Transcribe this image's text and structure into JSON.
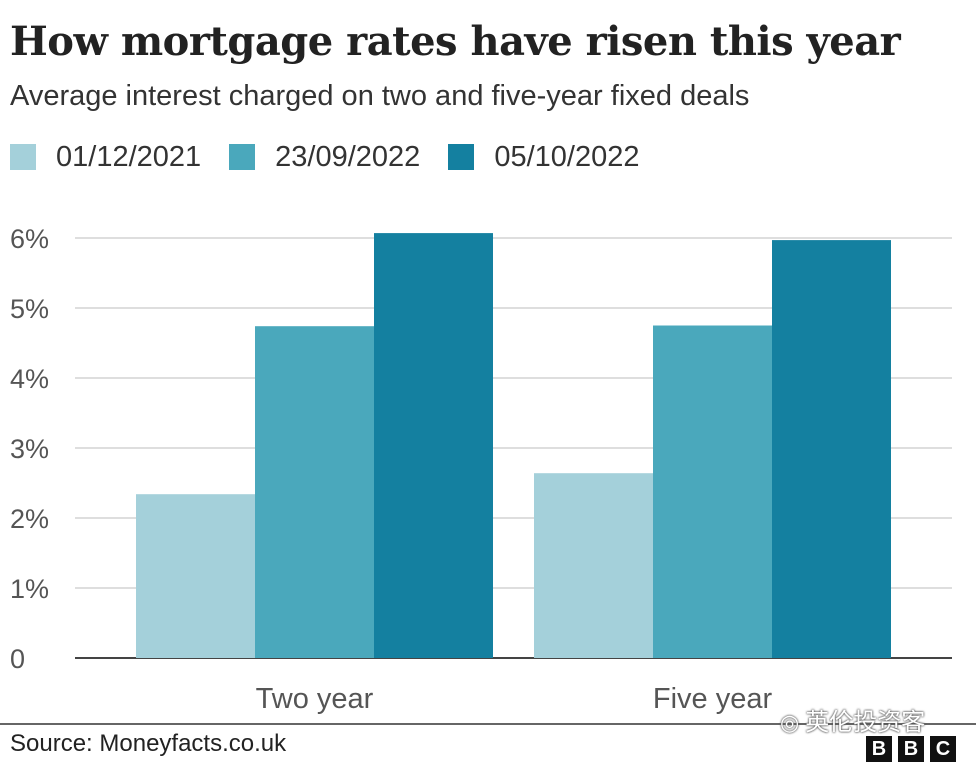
{
  "chart_data": {
    "type": "bar",
    "title": "How mortgage rates have risen this year",
    "subtitle": "Average interest charged on two and five-year fixed deals",
    "categories": [
      "Two year",
      "Five year"
    ],
    "series": [
      {
        "name": "01/12/2021",
        "color": "#a4d0da",
        "values": [
          2.34,
          2.64
        ]
      },
      {
        "name": "23/09/2022",
        "color": "#4aa8bc",
        "values": [
          4.74,
          4.75
        ]
      },
      {
        "name": "05/10/2022",
        "color": "#1480a0",
        "values": [
          6.07,
          5.97
        ]
      }
    ],
    "yticks": [
      "0",
      "1%",
      "2%",
      "3%",
      "4%",
      "5%",
      "6%"
    ],
    "ylim": [
      0,
      6
    ],
    "grid": true,
    "legend_position": "top-left"
  },
  "source": "Source: Moneyfacts.co.uk",
  "watermark": {
    "icon": "wechat-icon",
    "text": "英伦投资客"
  },
  "logo": {
    "letters": [
      "B",
      "B",
      "C"
    ]
  }
}
